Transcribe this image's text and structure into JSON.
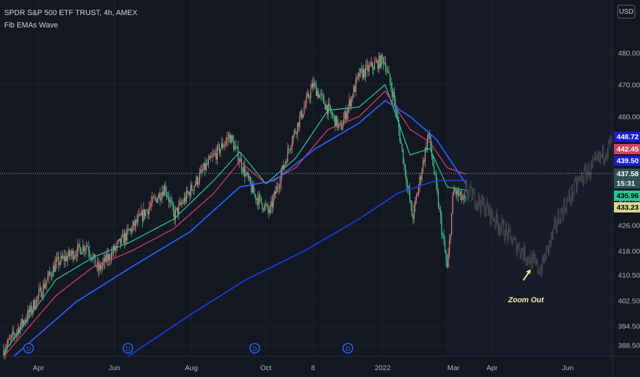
{
  "legend": {
    "title": "SPDR S&P 500 ETF TRUST, 4h, AMEX",
    "indicator": "Fib EMAs Wave"
  },
  "currency_button": "USD",
  "annotation": {
    "text": "Zoom Out"
  },
  "event_marker_label": "D",
  "price_tags": [
    {
      "value": "448.72",
      "bg": "#1a1dc9",
      "fg": "#ffffff"
    },
    {
      "value": "442.45",
      "bg": "#c9475d",
      "fg": "#ffffff"
    },
    {
      "value": "439.50",
      "bg": "#1a1dc9",
      "fg": "#ffffff"
    },
    {
      "value": "437.58",
      "bg": "#2f4f55",
      "fg": "#ffffff"
    },
    {
      "value": "15:31",
      "bg": "#2f4f55",
      "fg": "#ffffff"
    },
    {
      "value": "435.96",
      "bg": "#24c991",
      "fg": "#000000"
    },
    {
      "value": "433.23",
      "bg": "#d9d98a",
      "fg": "#000000"
    }
  ],
  "colors": {
    "background": "#131722",
    "candle_up": "#ee8d86",
    "candle_down": "#4dd596",
    "ema_green": "#26c6a0",
    "ema_red": "#d6406b",
    "ema_blue": "#2962ff",
    "ema_blue_long": "#1e3ddd",
    "annotation": "#f0f0a0",
    "marker": "#2962ff"
  },
  "chart_data": {
    "type": "line",
    "title": "SPDR S&P 500 ETF TRUST, 4h, AMEX",
    "xlabel": "",
    "ylabel": "",
    "x_tick_labels": [
      "Apr",
      "Jun",
      "Aug",
      "Oct",
      "8",
      "2022",
      "Mar",
      "Apr",
      "Jun"
    ],
    "x_tick_dates": [
      "2021-04-01",
      "2021-06-01",
      "2021-08-02",
      "2021-10-01",
      "2021-11-08",
      "2022-01-03",
      "2022-03-01",
      "2022-04-01",
      "2022-06-01"
    ],
    "y_tick_labels": [
      "388.50",
      "394.50",
      "402.50",
      "410.50",
      "418.00",
      "426.00",
      "433.23",
      "460.00",
      "470.00",
      "480.00"
    ],
    "y_ticks": [
      388.5,
      394.5,
      402.5,
      410.5,
      418.0,
      426.0,
      433.23,
      460.0,
      470.0,
      480.0
    ],
    "ylim": [
      385,
      486
    ],
    "xlim": [
      "2021-03-01",
      "2022-07-07"
    ],
    "last_price": 437.58,
    "series": [
      {
        "x": [
          "2021-03-04",
          "2021-03-25",
          "2021-04-15",
          "2021-05-10",
          "2021-05-19",
          "2021-06-15",
          "2021-07-12",
          "2021-07-19",
          "2021-08-13",
          "2021-09-02",
          "2021-09-21",
          "2021-10-04",
          "2021-10-21",
          "2021-11-08",
          "2021-11-30",
          "2021-12-15",
          "2022-01-04",
          "2022-01-12",
          "2022-01-27",
          "2022-02-09",
          "2022-02-24",
          "2022-03-01",
          "2022-03-11"
        ],
        "values": [
          387,
          399,
          414,
          420,
          412,
          425,
          438,
          429,
          444,
          454,
          436,
          430,
          452,
          470,
          456,
          473,
          478,
          466,
          428,
          455,
          412,
          437,
          433
        ]
      },
      {
        "x": [
          "2021-03-04",
          "2021-04-15",
          "2021-05-15",
          "2021-06-15",
          "2021-07-19",
          "2021-08-20",
          "2021-09-10",
          "2021-10-01",
          "2021-10-25",
          "2021-11-20",
          "2021-12-15",
          "2022-01-05",
          "2022-01-25",
          "2022-02-10",
          "2022-02-24",
          "2022-03-11"
        ],
        "values": [
          386,
          409,
          416,
          421,
          428,
          440,
          449,
          439,
          447,
          462,
          463,
          470,
          448,
          450,
          438,
          437
        ]
      },
      {
        "x": [
          "2021-03-04",
          "2021-04-15",
          "2021-05-15",
          "2021-06-15",
          "2021-07-19",
          "2021-08-20",
          "2021-09-10",
          "2021-10-01",
          "2021-10-25",
          "2021-11-20",
          "2021-12-15",
          "2022-01-05",
          "2022-01-25",
          "2022-02-10",
          "2022-02-24",
          "2022-03-11"
        ],
        "values": [
          385,
          404,
          413,
          418,
          425,
          436,
          446,
          439,
          444,
          456,
          460,
          468,
          456,
          452,
          444,
          442
        ]
      },
      {
        "x": [
          "2021-03-12",
          "2021-05-01",
          "2021-06-15",
          "2021-08-01",
          "2021-09-10",
          "2021-10-08",
          "2021-11-10",
          "2021-12-15",
          "2022-01-05",
          "2022-01-25",
          "2022-02-15",
          "2022-03-11"
        ],
        "values": [
          385,
          402,
          413,
          424,
          438,
          440,
          450,
          458,
          465,
          460,
          453,
          439
        ]
      },
      {
        "x": [
          "2021-06-12",
          "2021-08-01",
          "2021-09-15",
          "2021-11-01",
          "2021-12-15",
          "2022-01-15",
          "2022-02-15",
          "2022-03-11"
        ],
        "values": [
          385,
          398,
          409,
          418,
          428,
          436,
          440,
          440
        ]
      },
      {
        "x": [
          "2022-03-11",
          "2022-03-28",
          "2022-04-20",
          "2022-05-10",
          "2022-05-24",
          "2022-06-10",
          "2022-06-25",
          "2022-07-06"
        ],
        "values": [
          437,
          431,
          420,
          412,
          428,
          440,
          446,
          452
        ]
      }
    ]
  }
}
